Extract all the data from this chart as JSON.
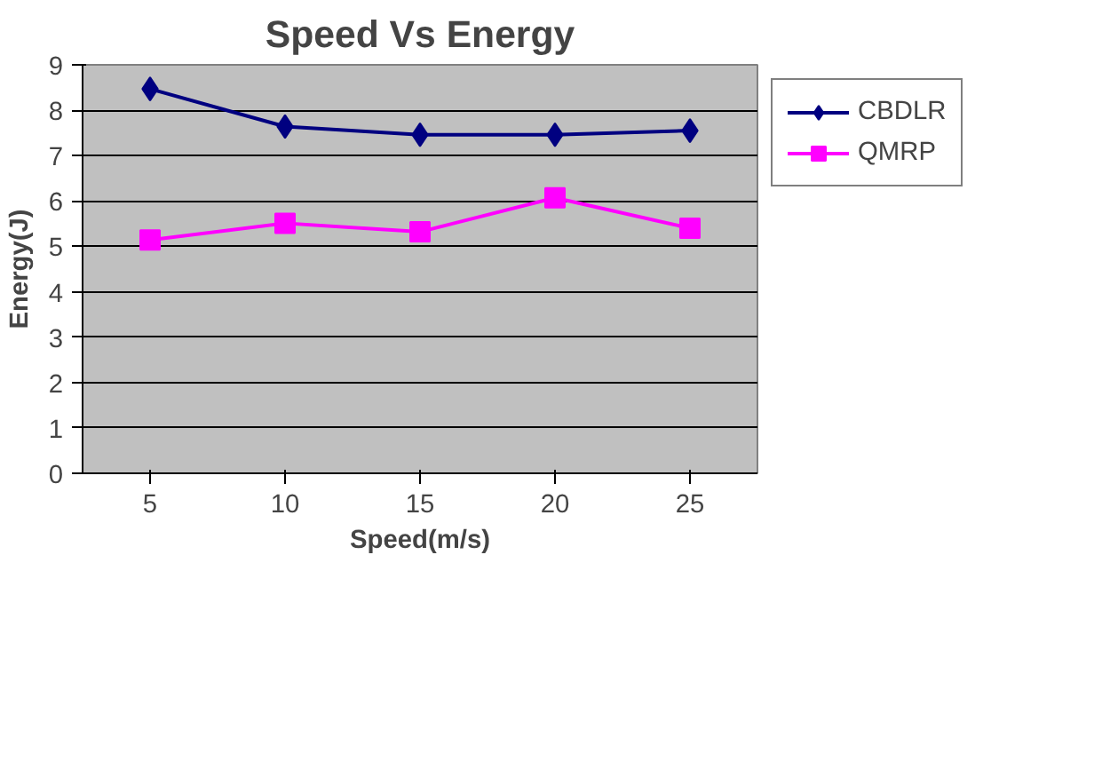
{
  "chart_data": {
    "type": "line",
    "title": "Speed Vs Energy",
    "xlabel": "Speed(m/s)",
    "ylabel": "Energy(J)",
    "categories": [
      "5",
      "10",
      "15",
      "20",
      "25"
    ],
    "series": [
      {
        "name": "CBDLR",
        "color": "#000080",
        "marker": "diamond",
        "values": [
          8.47,
          7.64,
          7.46,
          7.46,
          7.55
        ]
      },
      {
        "name": "QMRP",
        "color": "#ff00ff",
        "marker": "square",
        "values": [
          5.14,
          5.51,
          5.32,
          6.07,
          5.4
        ]
      }
    ],
    "ylim": [
      0,
      9
    ],
    "yticks": [
      0,
      1,
      2,
      3,
      4,
      5,
      6,
      7,
      8,
      9
    ],
    "grid": "y",
    "legend": "right"
  }
}
